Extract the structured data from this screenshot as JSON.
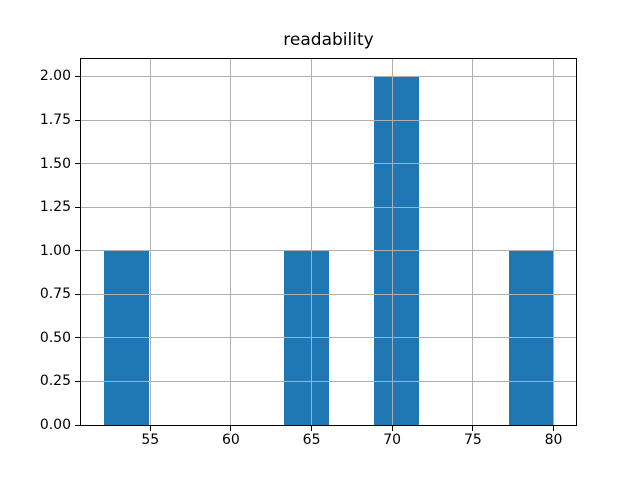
{
  "figure": {
    "background_color": "#ffffff"
  },
  "chart_data": {
    "type": "bar",
    "subtype": "histogram",
    "title": "readability",
    "xlabel": "",
    "ylabel": "",
    "bin_edges": [
      52.1,
      54.89,
      57.68,
      60.47,
      63.26,
      66.05,
      68.84,
      71.63,
      74.42,
      77.21,
      80.0
    ],
    "counts": [
      1,
      0,
      0,
      0,
      1,
      0,
      2,
      0,
      0,
      1
    ],
    "xticks": [
      55,
      60,
      65,
      70,
      75,
      80
    ],
    "xtick_labels": [
      "55",
      "60",
      "65",
      "70",
      "75",
      "80"
    ],
    "ytick_values": [
      0.0,
      0.25,
      0.5,
      0.75,
      1.0,
      1.25,
      1.5,
      1.75,
      2.0
    ],
    "ytick_labels": [
      "0.00",
      "0.25",
      "0.50",
      "0.75",
      "1.00",
      "1.25",
      "1.50",
      "1.75",
      "2.00"
    ],
    "xlim": [
      50.705,
      81.395
    ],
    "ylim": [
      0,
      2.1
    ],
    "grid": true,
    "grid_over_bars": true,
    "legend": "none",
    "bar_color": "#1f77b4",
    "grid_color": "#b0b0b0",
    "spine_color": "#000000",
    "text_color": "#000000"
  }
}
